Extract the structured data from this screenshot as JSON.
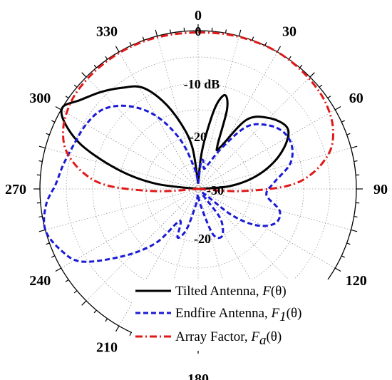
{
  "chart_data": {
    "type": "polar",
    "radial_unit": "dB",
    "radial_range": [
      -30,
      0
    ],
    "angle_ticks": [
      {
        "angle": 0,
        "label": "0"
      },
      {
        "angle": 30,
        "label": "30"
      },
      {
        "angle": 60,
        "label": "60"
      },
      {
        "angle": 90,
        "label": "90"
      },
      {
        "angle": 120,
        "label": "120"
      },
      {
        "angle": 180,
        "label": "180"
      },
      {
        "angle": 210,
        "label": "210"
      },
      {
        "angle": 240,
        "label": "240"
      },
      {
        "angle": 270,
        "label": "270"
      },
      {
        "angle": 300,
        "label": "300"
      },
      {
        "angle": 330,
        "label": "330"
      }
    ],
    "radial_labels": [
      {
        "value": 0,
        "label": "0"
      },
      {
        "value": -10,
        "label": "-10 dB"
      },
      {
        "value": -20,
        "label": "-20"
      },
      {
        "value": -30,
        "label": "-30"
      },
      {
        "value": -20,
        "label": "-20",
        "side": "lower"
      }
    ],
    "grid": true,
    "legend_position": "bottom-right",
    "series": [
      {
        "name": "Tilted Antenna",
        "func": "F(θ)",
        "color": "#000000",
        "style": "solid",
        "points": [
          [
            0,
            -29
          ],
          [
            5,
            -24
          ],
          [
            8,
            -20
          ],
          [
            12,
            -14
          ],
          [
            16,
            -11.5
          ],
          [
            20,
            -14
          ],
          [
            24,
            -21
          ],
          [
            28,
            -21
          ],
          [
            35,
            -14
          ],
          [
            45,
            -11
          ],
          [
            55,
            -9.5
          ],
          [
            62,
            -11
          ],
          [
            70,
            -14.5
          ],
          [
            78,
            -19
          ],
          [
            85,
            -24
          ],
          [
            90,
            -30
          ],
          [
            180,
            -30
          ],
          [
            270,
            -30
          ],
          [
            277,
            -22
          ],
          [
            283,
            -15
          ],
          [
            290,
            -7
          ],
          [
            296,
            -2
          ],
          [
            301,
            0
          ],
          [
            307,
            -2
          ],
          [
            315,
            -4
          ],
          [
            323,
            -6
          ],
          [
            331,
            -8
          ],
          [
            338,
            -12
          ],
          [
            345,
            -17
          ],
          [
            352,
            -22
          ],
          [
            360,
            -29
          ]
        ]
      },
      {
        "name": "Endfire Antenna",
        "func": "F1(θ)",
        "color": "#1a1ad6",
        "style": "dashed",
        "points": [
          [
            0,
            -29
          ],
          [
            6,
            -25
          ],
          [
            10,
            -24.5
          ],
          [
            16,
            -26
          ],
          [
            22,
            -25
          ],
          [
            30,
            -21
          ],
          [
            38,
            -15
          ],
          [
            48,
            -12
          ],
          [
            57,
            -10.5
          ],
          [
            66,
            -10.5
          ],
          [
            75,
            -12
          ],
          [
            85,
            -15.5
          ],
          [
            95,
            -17
          ],
          [
            105,
            -14
          ],
          [
            114,
            -14
          ],
          [
            122,
            -17
          ],
          [
            128,
            -22
          ],
          [
            135,
            -29
          ],
          [
            143,
            -23
          ],
          [
            153,
            -20
          ],
          [
            162,
            -21
          ],
          [
            172,
            -27
          ],
          [
            180,
            -29
          ],
          [
            188,
            -27
          ],
          [
            196,
            -22
          ],
          [
            203,
            -20
          ],
          [
            210,
            -23
          ],
          [
            218,
            -17
          ],
          [
            228,
            -11
          ],
          [
            238,
            -4
          ],
          [
            246,
            -1.5
          ],
          [
            255,
            0
          ],
          [
            264,
            -1
          ],
          [
            272,
            -3
          ],
          [
            280,
            -4
          ],
          [
            290,
            -5
          ],
          [
            300,
            -5.5
          ],
          [
            310,
            -6.5
          ],
          [
            320,
            -9.5
          ],
          [
            330,
            -14
          ],
          [
            340,
            -20
          ],
          [
            350,
            -26
          ],
          [
            360,
            -29
          ]
        ]
      },
      {
        "name": "Array Factor",
        "func": "Fa(θ)",
        "color": "#e01818",
        "style": "dashdot",
        "points": [
          [
            0,
            -0.3
          ],
          [
            10,
            -0.2
          ],
          [
            20,
            -0.1
          ],
          [
            30,
            0
          ],
          [
            40,
            -0.2
          ],
          [
            50,
            -0.5
          ],
          [
            58,
            -1
          ],
          [
            66,
            -2
          ],
          [
            74,
            -4
          ],
          [
            82,
            -8
          ],
          [
            88,
            -13
          ],
          [
            93,
            -22
          ],
          [
            95,
            -30
          ],
          [
            265,
            -30
          ],
          [
            267,
            -22
          ],
          [
            272,
            -13
          ],
          [
            278,
            -8
          ],
          [
            286,
            -4
          ],
          [
            294,
            -2
          ],
          [
            302,
            -1
          ],
          [
            310,
            -0.5
          ],
          [
            320,
            -0.3
          ],
          [
            330,
            -0.2
          ],
          [
            340,
            -0.2
          ],
          [
            350,
            -0.3
          ],
          [
            360,
            -0.3
          ]
        ]
      }
    ]
  },
  "legend": {
    "items": [
      {
        "text": "Tilted Antenna, ",
        "func_letter": "F",
        "func_sub": "",
        "func_arg": "(θ)"
      },
      {
        "text": "Endfire Antenna, ",
        "func_letter": "F",
        "func_sub": "1",
        "func_arg": "(θ)"
      },
      {
        "text": "Array Factor, ",
        "func_letter": "F",
        "func_sub": "a",
        "func_arg": "(θ)"
      }
    ]
  }
}
